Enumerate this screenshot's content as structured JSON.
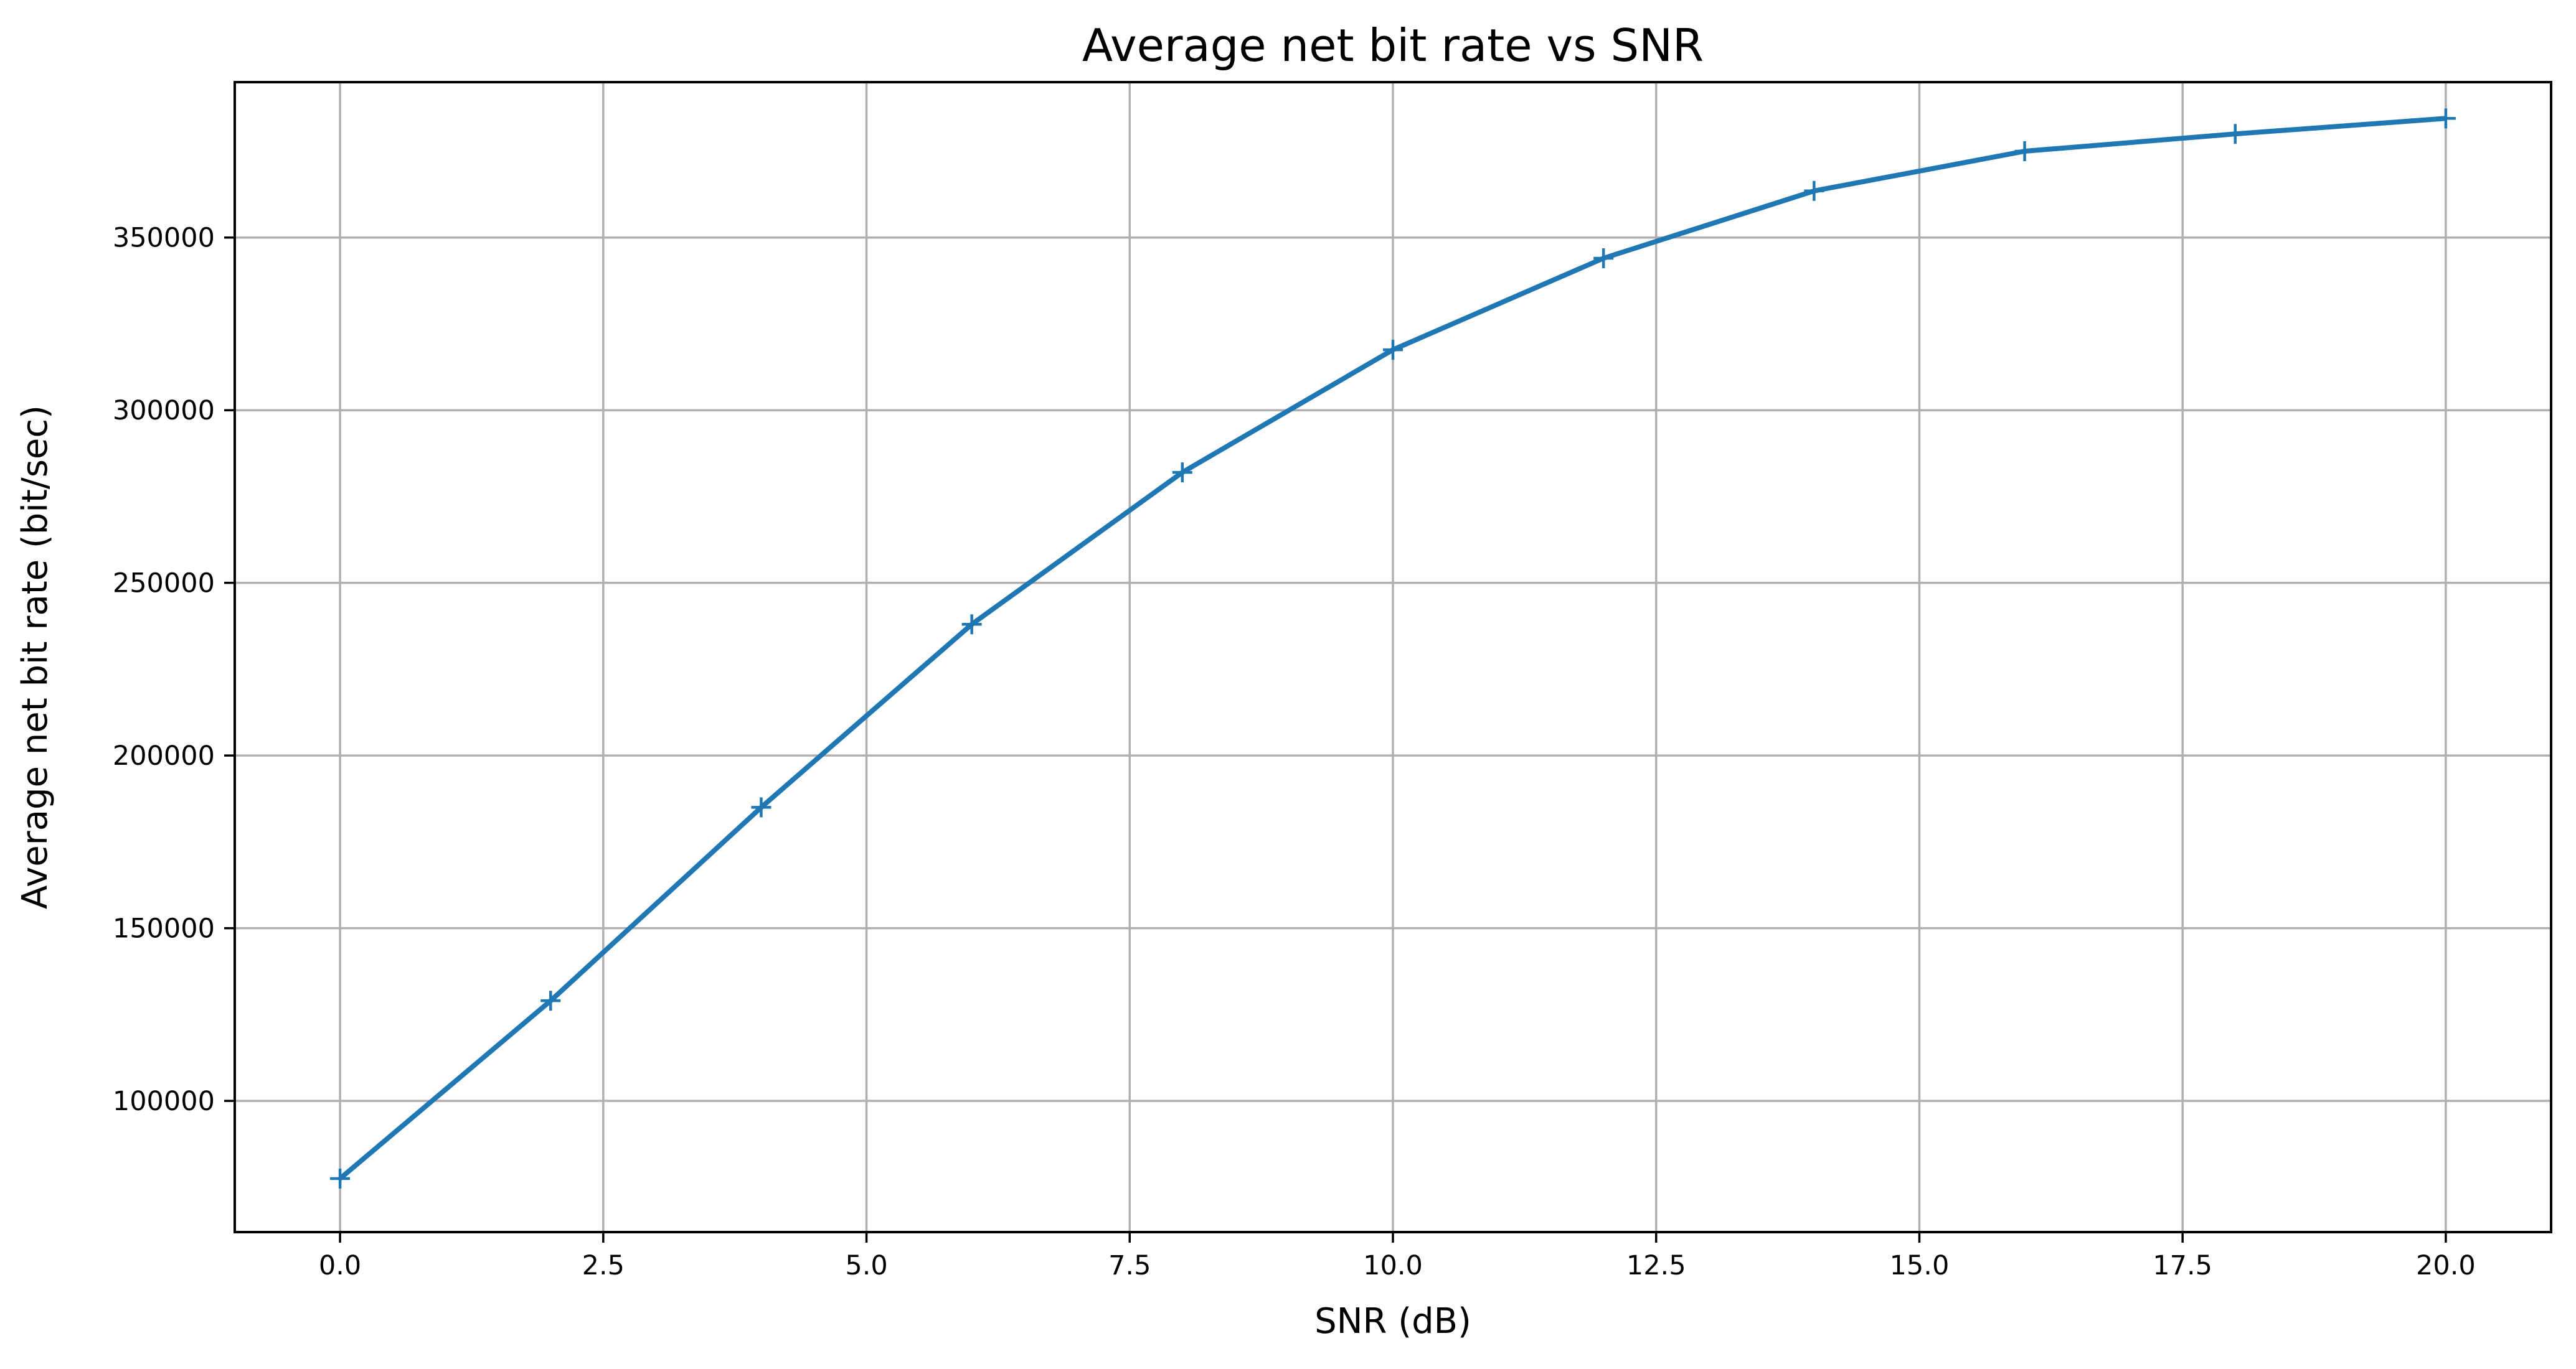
{
  "colors": {
    "series": "#1f77b4",
    "grid": "#b0b0b0",
    "axes": "#000000",
    "background": "#ffffff"
  },
  "chart_data": {
    "type": "line",
    "title": "Average net bit rate vs SNR",
    "xlabel": "SNR (dB)",
    "ylabel": "Average net bit rate (bit/sec)",
    "xlim": [
      -1.0,
      21.0
    ],
    "ylim": [
      62000,
      395000
    ],
    "xticks": [
      0.0,
      2.5,
      5.0,
      7.5,
      10.0,
      12.5,
      15.0,
      17.5,
      20.0
    ],
    "xtick_labels": [
      "0.0",
      "2.5",
      "5.0",
      "7.5",
      "10.0",
      "12.5",
      "15.0",
      "17.5",
      "20.0"
    ],
    "yticks": [
      100000,
      150000,
      200000,
      250000,
      300000,
      350000
    ],
    "ytick_labels": [
      "100000",
      "150000",
      "200000",
      "250000",
      "300000",
      "350000"
    ],
    "grid": true,
    "marker": "+",
    "series": [
      {
        "x": [
          0,
          2,
          4,
          6,
          8,
          10,
          12,
          14,
          16,
          18,
          20
        ],
        "y": [
          77500,
          129000,
          185000,
          238000,
          282000,
          317500,
          344000,
          363500,
          375000,
          380000,
          384500
        ]
      }
    ]
  }
}
